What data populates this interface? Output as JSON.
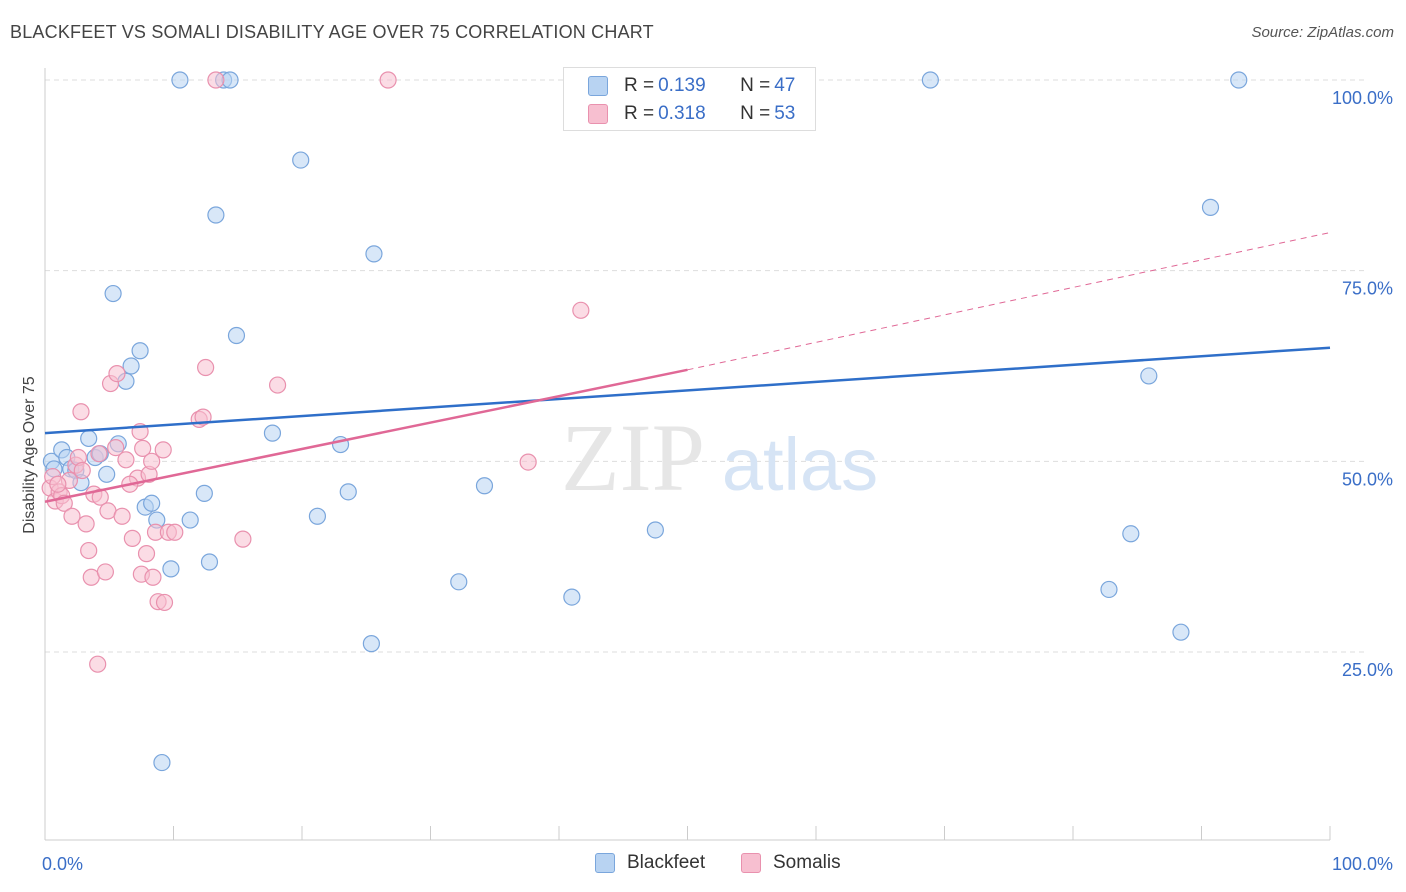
{
  "header": {
    "title": "BLACKFEET VS SOMALI DISABILITY AGE OVER 75 CORRELATION CHART",
    "source": "Source: ZipAtlas.com"
  },
  "watermark": {
    "zip": "ZIP",
    "atlas": "atlas"
  },
  "legend": {
    "rows": [
      {
        "r_label": "R = ",
        "r_value": "0.139",
        "n_label": "N = ",
        "n_value": "47"
      },
      {
        "r_label": "R = ",
        "r_value": "0.318",
        "n_label": "N = ",
        "n_value": "53"
      }
    ]
  },
  "colors": {
    "blackfeet_fill": "#b8d3f2",
    "blackfeet_stroke": "#7aa6dc",
    "blackfeet_line": "#2f6fc9",
    "somali_fill": "#f7bfd0",
    "somali_stroke": "#e991ae",
    "somali_line": "#e06896",
    "axis_text": "#3a6ec7",
    "grid": "#dddddd"
  },
  "chart_data": {
    "type": "scatter",
    "title": "BLACKFEET VS SOMALI DISABILITY AGE OVER 75 CORRELATION CHART",
    "xlabel": "",
    "ylabel": "Disability Age Over 75",
    "xlim": [
      0,
      100
    ],
    "ylim": [
      5,
      100
    ],
    "x_tick_labels": [
      "0.0%",
      "100.0%"
    ],
    "y_ticks": [
      25,
      50,
      75,
      100
    ],
    "y_tick_labels": [
      "25.0%",
      "50.0%",
      "75.0%",
      "100.0%"
    ],
    "grid": true,
    "legend_position": "top-center",
    "series": [
      {
        "name": "Blackfeet",
        "r": 0.139,
        "n": 47,
        "trend": {
          "x": [
            0,
            100
          ],
          "y": [
            53.7,
            64.9
          ],
          "dashed_from": null
        },
        "points": [
          {
            "x": 0.5,
            "y": 50.0
          },
          {
            "x": 0.7,
            "y": 49.0
          },
          {
            "x": 1.3,
            "y": 51.5
          },
          {
            "x": 1.7,
            "y": 50.5
          },
          {
            "x": 2.0,
            "y": 49.0
          },
          {
            "x": 2.4,
            "y": 48.8
          },
          {
            "x": 2.8,
            "y": 47.2
          },
          {
            "x": 3.4,
            "y": 53.0
          },
          {
            "x": 3.9,
            "y": 50.5
          },
          {
            "x": 4.3,
            "y": 51.0
          },
          {
            "x": 4.8,
            "y": 48.3
          },
          {
            "x": 5.3,
            "y": 72.0
          },
          {
            "x": 5.7,
            "y": 52.3
          },
          {
            "x": 6.3,
            "y": 60.5
          },
          {
            "x": 6.7,
            "y": 62.5
          },
          {
            "x": 7.4,
            "y": 64.5
          },
          {
            "x": 7.8,
            "y": 44.0
          },
          {
            "x": 8.3,
            "y": 44.5
          },
          {
            "x": 8.7,
            "y": 42.3
          },
          {
            "x": 9.1,
            "y": 10.5
          },
          {
            "x": 9.8,
            "y": 35.9
          },
          {
            "x": 10.5,
            "y": 100.0
          },
          {
            "x": 11.3,
            "y": 42.3
          },
          {
            "x": 12.4,
            "y": 45.8
          },
          {
            "x": 12.8,
            "y": 36.8
          },
          {
            "x": 13.3,
            "y": 82.3
          },
          {
            "x": 13.9,
            "y": 100.0
          },
          {
            "x": 14.4,
            "y": 100.0
          },
          {
            "x": 14.9,
            "y": 66.5
          },
          {
            "x": 17.7,
            "y": 53.7
          },
          {
            "x": 19.9,
            "y": 89.5
          },
          {
            "x": 21.2,
            "y": 42.8
          },
          {
            "x": 23.0,
            "y": 52.2
          },
          {
            "x": 23.6,
            "y": 46.0
          },
          {
            "x": 25.4,
            "y": 26.1
          },
          {
            "x": 25.6,
            "y": 77.2
          },
          {
            "x": 32.2,
            "y": 34.2
          },
          {
            "x": 34.2,
            "y": 46.8
          },
          {
            "x": 41.0,
            "y": 32.2
          },
          {
            "x": 47.5,
            "y": 41.0
          },
          {
            "x": 52.4,
            "y": 100.0
          },
          {
            "x": 68.9,
            "y": 100.0
          },
          {
            "x": 82.8,
            "y": 33.2
          },
          {
            "x": 84.5,
            "y": 40.5
          },
          {
            "x": 85.9,
            "y": 61.2
          },
          {
            "x": 88.4,
            "y": 27.6
          },
          {
            "x": 90.7,
            "y": 83.3
          },
          {
            "x": 92.9,
            "y": 100.0
          }
        ]
      },
      {
        "name": "Somalis",
        "r": 0.318,
        "n": 53,
        "trend": {
          "x": [
            0,
            50
          ],
          "y": [
            44.7,
            62.0
          ],
          "dashed_x": [
            50,
            100
          ],
          "dashed_y": [
            62.0,
            80.0
          ]
        },
        "points": [
          {
            "x": 0.4,
            "y": 46.5
          },
          {
            "x": 0.6,
            "y": 48.0
          },
          {
            "x": 0.8,
            "y": 44.8
          },
          {
            "x": 1.1,
            "y": 46.0
          },
          {
            "x": 1.3,
            "y": 45.5
          },
          {
            "x": 1.5,
            "y": 44.5
          },
          {
            "x": 1.9,
            "y": 47.5
          },
          {
            "x": 2.1,
            "y": 42.8
          },
          {
            "x": 2.4,
            "y": 49.5
          },
          {
            "x": 2.6,
            "y": 50.5
          },
          {
            "x": 2.9,
            "y": 48.8
          },
          {
            "x": 2.8,
            "y": 56.5
          },
          {
            "x": 3.2,
            "y": 41.8
          },
          {
            "x": 3.4,
            "y": 38.3
          },
          {
            "x": 3.6,
            "y": 34.8
          },
          {
            "x": 3.8,
            "y": 45.7
          },
          {
            "x": 4.1,
            "y": 23.4
          },
          {
            "x": 4.2,
            "y": 51.0
          },
          {
            "x": 4.3,
            "y": 45.3
          },
          {
            "x": 4.7,
            "y": 35.5
          },
          {
            "x": 4.9,
            "y": 43.5
          },
          {
            "x": 5.1,
            "y": 60.2
          },
          {
            "x": 5.5,
            "y": 51.8
          },
          {
            "x": 5.6,
            "y": 61.5
          },
          {
            "x": 6.0,
            "y": 42.8
          },
          {
            "x": 6.3,
            "y": 50.2
          },
          {
            "x": 6.8,
            "y": 39.9
          },
          {
            "x": 7.2,
            "y": 47.8
          },
          {
            "x": 7.4,
            "y": 53.9
          },
          {
            "x": 7.5,
            "y": 35.2
          },
          {
            "x": 7.6,
            "y": 51.7
          },
          {
            "x": 7.9,
            "y": 37.9
          },
          {
            "x": 8.1,
            "y": 48.3
          },
          {
            "x": 8.3,
            "y": 50.0
          },
          {
            "x": 8.4,
            "y": 34.8
          },
          {
            "x": 8.6,
            "y": 40.7
          },
          {
            "x": 8.8,
            "y": 31.6
          },
          {
            "x": 9.2,
            "y": 51.5
          },
          {
            "x": 9.3,
            "y": 31.5
          },
          {
            "x": 9.6,
            "y": 40.7
          },
          {
            "x": 10.1,
            "y": 40.7
          },
          {
            "x": 12.0,
            "y": 55.5
          },
          {
            "x": 12.3,
            "y": 55.8
          },
          {
            "x": 12.5,
            "y": 62.3
          },
          {
            "x": 15.4,
            "y": 39.8
          },
          {
            "x": 18.1,
            "y": 60.0
          },
          {
            "x": 26.7,
            "y": 100.0
          },
          {
            "x": 37.6,
            "y": 49.9
          },
          {
            "x": 41.7,
            "y": 69.8
          },
          {
            "x": 52.4,
            "y": 100.0
          },
          {
            "x": 13.3,
            "y": 100.0
          },
          {
            "x": 1.0,
            "y": 47.0
          },
          {
            "x": 6.6,
            "y": 47.0
          }
        ]
      }
    ]
  }
}
